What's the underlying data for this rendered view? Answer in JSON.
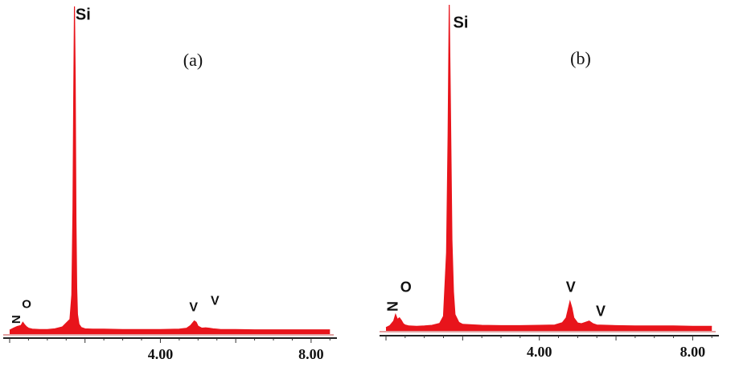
{
  "chart_data": [
    {
      "type": "line",
      "panel_label": "(a)",
      "x_ticks": [
        4.0,
        8.0
      ],
      "x_tick_labels": [
        "4.00",
        "8.00"
      ],
      "xlim": [
        0,
        8.6
      ],
      "ylim": [
        0,
        100
      ],
      "series_color": "#e8141b",
      "baseline_color": "#d98080",
      "x": [
        0.0,
        0.1,
        0.2,
        0.3,
        0.35,
        0.4,
        0.45,
        0.5,
        0.6,
        0.8,
        1.0,
        1.2,
        1.4,
        1.6,
        1.65,
        1.68,
        1.7,
        1.72,
        1.74,
        1.76,
        1.78,
        1.8,
        1.84,
        1.9,
        2.0,
        2.2,
        2.5,
        3.0,
        3.5,
        4.0,
        4.5,
        4.7,
        4.8,
        4.9,
        4.95,
        5.0,
        5.1,
        5.2,
        5.3,
        5.4,
        5.5,
        5.6,
        6.0,
        6.5,
        7.0,
        7.5,
        8.0,
        8.5
      ],
      "y": [
        1.2,
        1.8,
        2.3,
        2.6,
        3.6,
        2.8,
        2.2,
        1.8,
        1.5,
        1.4,
        1.4,
        1.6,
        2.2,
        4.5,
        12.0,
        38.0,
        72.0,
        100.0,
        78.0,
        35.0,
        14.0,
        6.0,
        3.0,
        2.0,
        1.6,
        1.5,
        1.5,
        1.4,
        1.4,
        1.4,
        1.5,
        1.8,
        2.6,
        4.0,
        3.6,
        2.4,
        1.8,
        1.9,
        1.8,
        1.6,
        1.5,
        1.4,
        1.4,
        1.3,
        1.3,
        1.3,
        1.3,
        1.3
      ],
      "annotations": [
        {
          "text": "Si",
          "x": 1.95,
          "y": 96
        },
        {
          "text": "O",
          "x": 0.45,
          "y": 8
        },
        {
          "text": "N",
          "x": 0.28,
          "y": 4.5,
          "rotate": -90
        },
        {
          "text": "V",
          "x": 4.88,
          "y": 7
        },
        {
          "text": "V",
          "x": 5.45,
          "y": 9
        }
      ]
    },
    {
      "type": "line",
      "panel_label": "(b)",
      "x_ticks": [
        4.0,
        8.0
      ],
      "x_tick_labels": [
        "4.00",
        "8.00"
      ],
      "xlim": [
        0,
        8.6
      ],
      "ylim": [
        0,
        100
      ],
      "series_color": "#e8141b",
      "baseline_color": "#d98080",
      "x": [
        0.0,
        0.1,
        0.2,
        0.25,
        0.3,
        0.35,
        0.4,
        0.45,
        0.5,
        0.6,
        0.8,
        1.0,
        1.2,
        1.4,
        1.5,
        1.58,
        1.62,
        1.65,
        1.68,
        1.72,
        1.76,
        1.8,
        1.9,
        2.0,
        2.5,
        3.0,
        3.5,
        4.0,
        4.4,
        4.6,
        4.7,
        4.75,
        4.8,
        4.85,
        4.9,
        5.0,
        5.1,
        5.2,
        5.3,
        5.4,
        5.5,
        6.0,
        6.5,
        7.0,
        7.5,
        8.0,
        8.5
      ],
      "y": [
        1.0,
        1.6,
        3.0,
        5.0,
        3.5,
        4.0,
        3.2,
        2.2,
        1.8,
        1.5,
        1.4,
        1.5,
        1.7,
        2.3,
        4.5,
        24.0,
        60.0,
        100.0,
        70.0,
        28.0,
        12.0,
        5.0,
        2.6,
        2.0,
        1.7,
        1.6,
        1.6,
        1.7,
        1.8,
        2.5,
        4.0,
        6.5,
        9.0,
        7.0,
        4.0,
        2.4,
        2.2,
        2.6,
        3.0,
        2.2,
        1.8,
        1.6,
        1.5,
        1.5,
        1.5,
        1.4,
        1.4
      ],
      "annotations": [
        {
          "text": "Si",
          "x": 1.95,
          "y": 93
        },
        {
          "text": "O",
          "x": 0.52,
          "y": 12
        },
        {
          "text": "N",
          "x": 0.3,
          "y": 7.5,
          "rotate": -90
        },
        {
          "text": "V",
          "x": 4.82,
          "y": 12
        },
        {
          "text": "V",
          "x": 5.6,
          "y": 4.5
        }
      ]
    }
  ]
}
